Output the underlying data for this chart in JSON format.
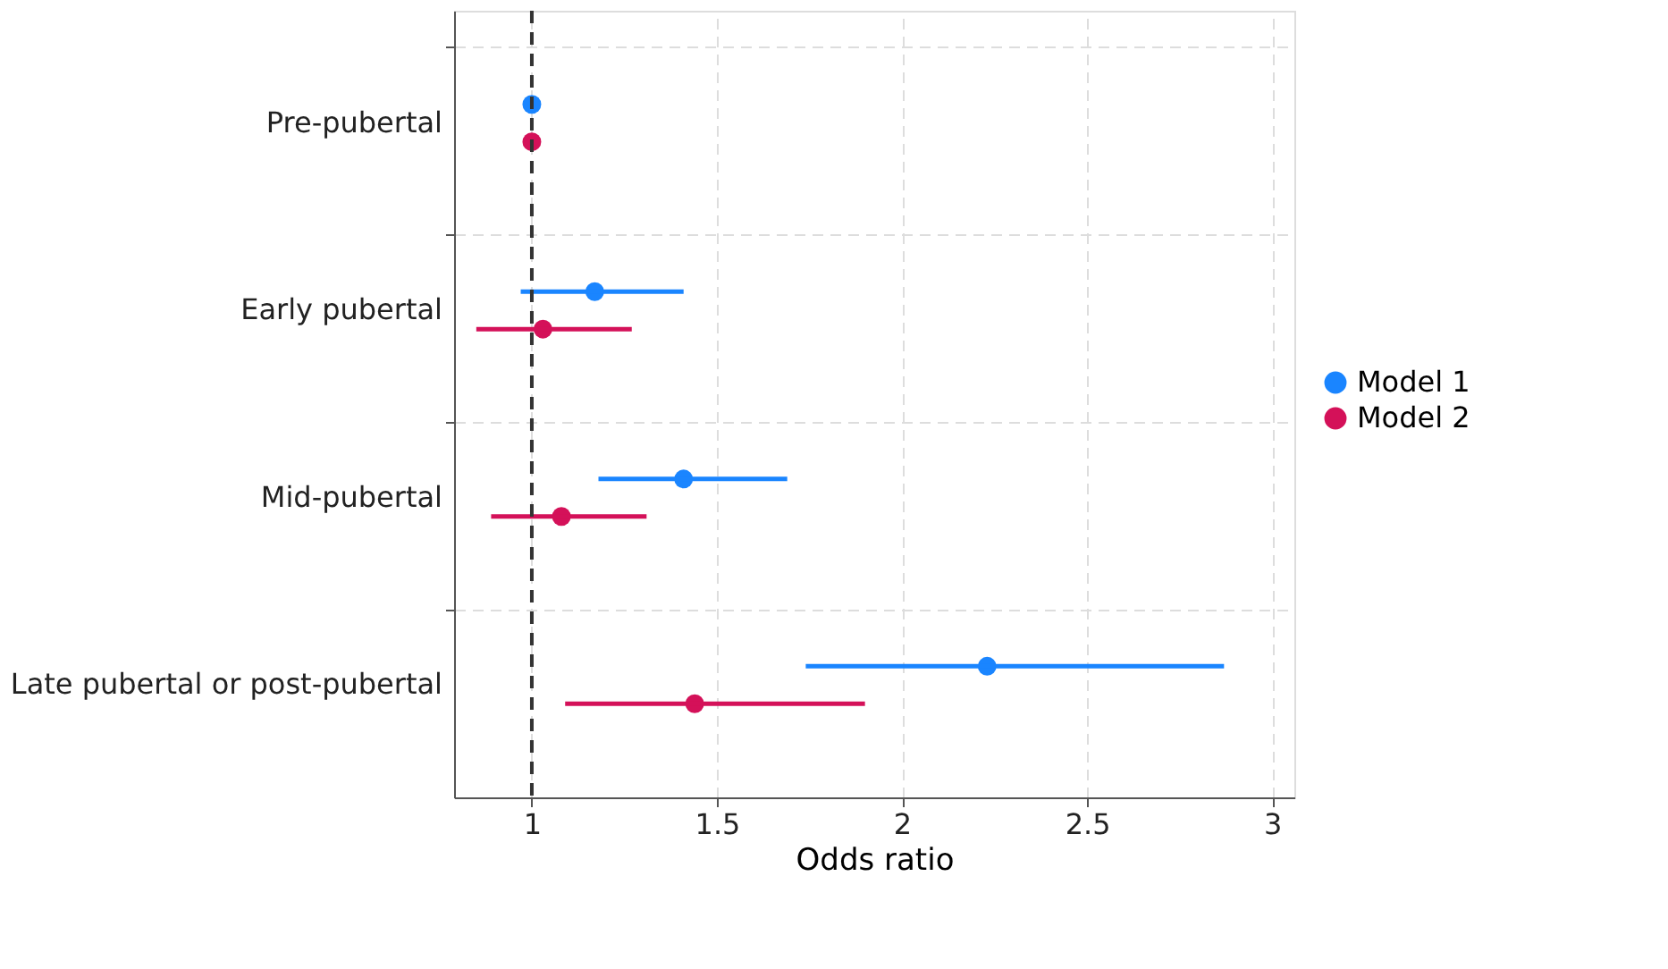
{
  "chart_data": {
    "type": "scatter",
    "orientation": "horizontal",
    "xlabel": "Odds ratio",
    "categories": [
      "Pre-pubertal",
      "Early pubertal",
      "Mid-pubertal",
      "Late pubertal or post-pubertal"
    ],
    "series": [
      {
        "name": "Model 1",
        "color": "#1a85ff",
        "values": [
          1.0,
          1.17,
          1.41,
          2.23
        ],
        "errors": [
          null,
          [
            0.97,
            1.41
          ],
          [
            1.18,
            1.69
          ],
          [
            1.74,
            2.87
          ]
        ]
      },
      {
        "name": "Model 2",
        "color": "#d41159",
        "values": [
          1.0,
          1.03,
          1.08,
          1.44
        ],
        "errors": [
          null,
          [
            0.85,
            1.27
          ],
          [
            0.89,
            1.31
          ],
          [
            1.09,
            1.9
          ]
        ]
      }
    ],
    "xlim": [
      0.79,
      3.06
    ],
    "xticks": [
      1,
      1.5,
      2,
      2.5,
      3
    ],
    "ref_lines": [
      {
        "axis": "x",
        "value": 1,
        "color": "#333333",
        "line_style": "dashed"
      }
    ],
    "grid": true,
    "legend": "right",
    "marker": "circle"
  }
}
